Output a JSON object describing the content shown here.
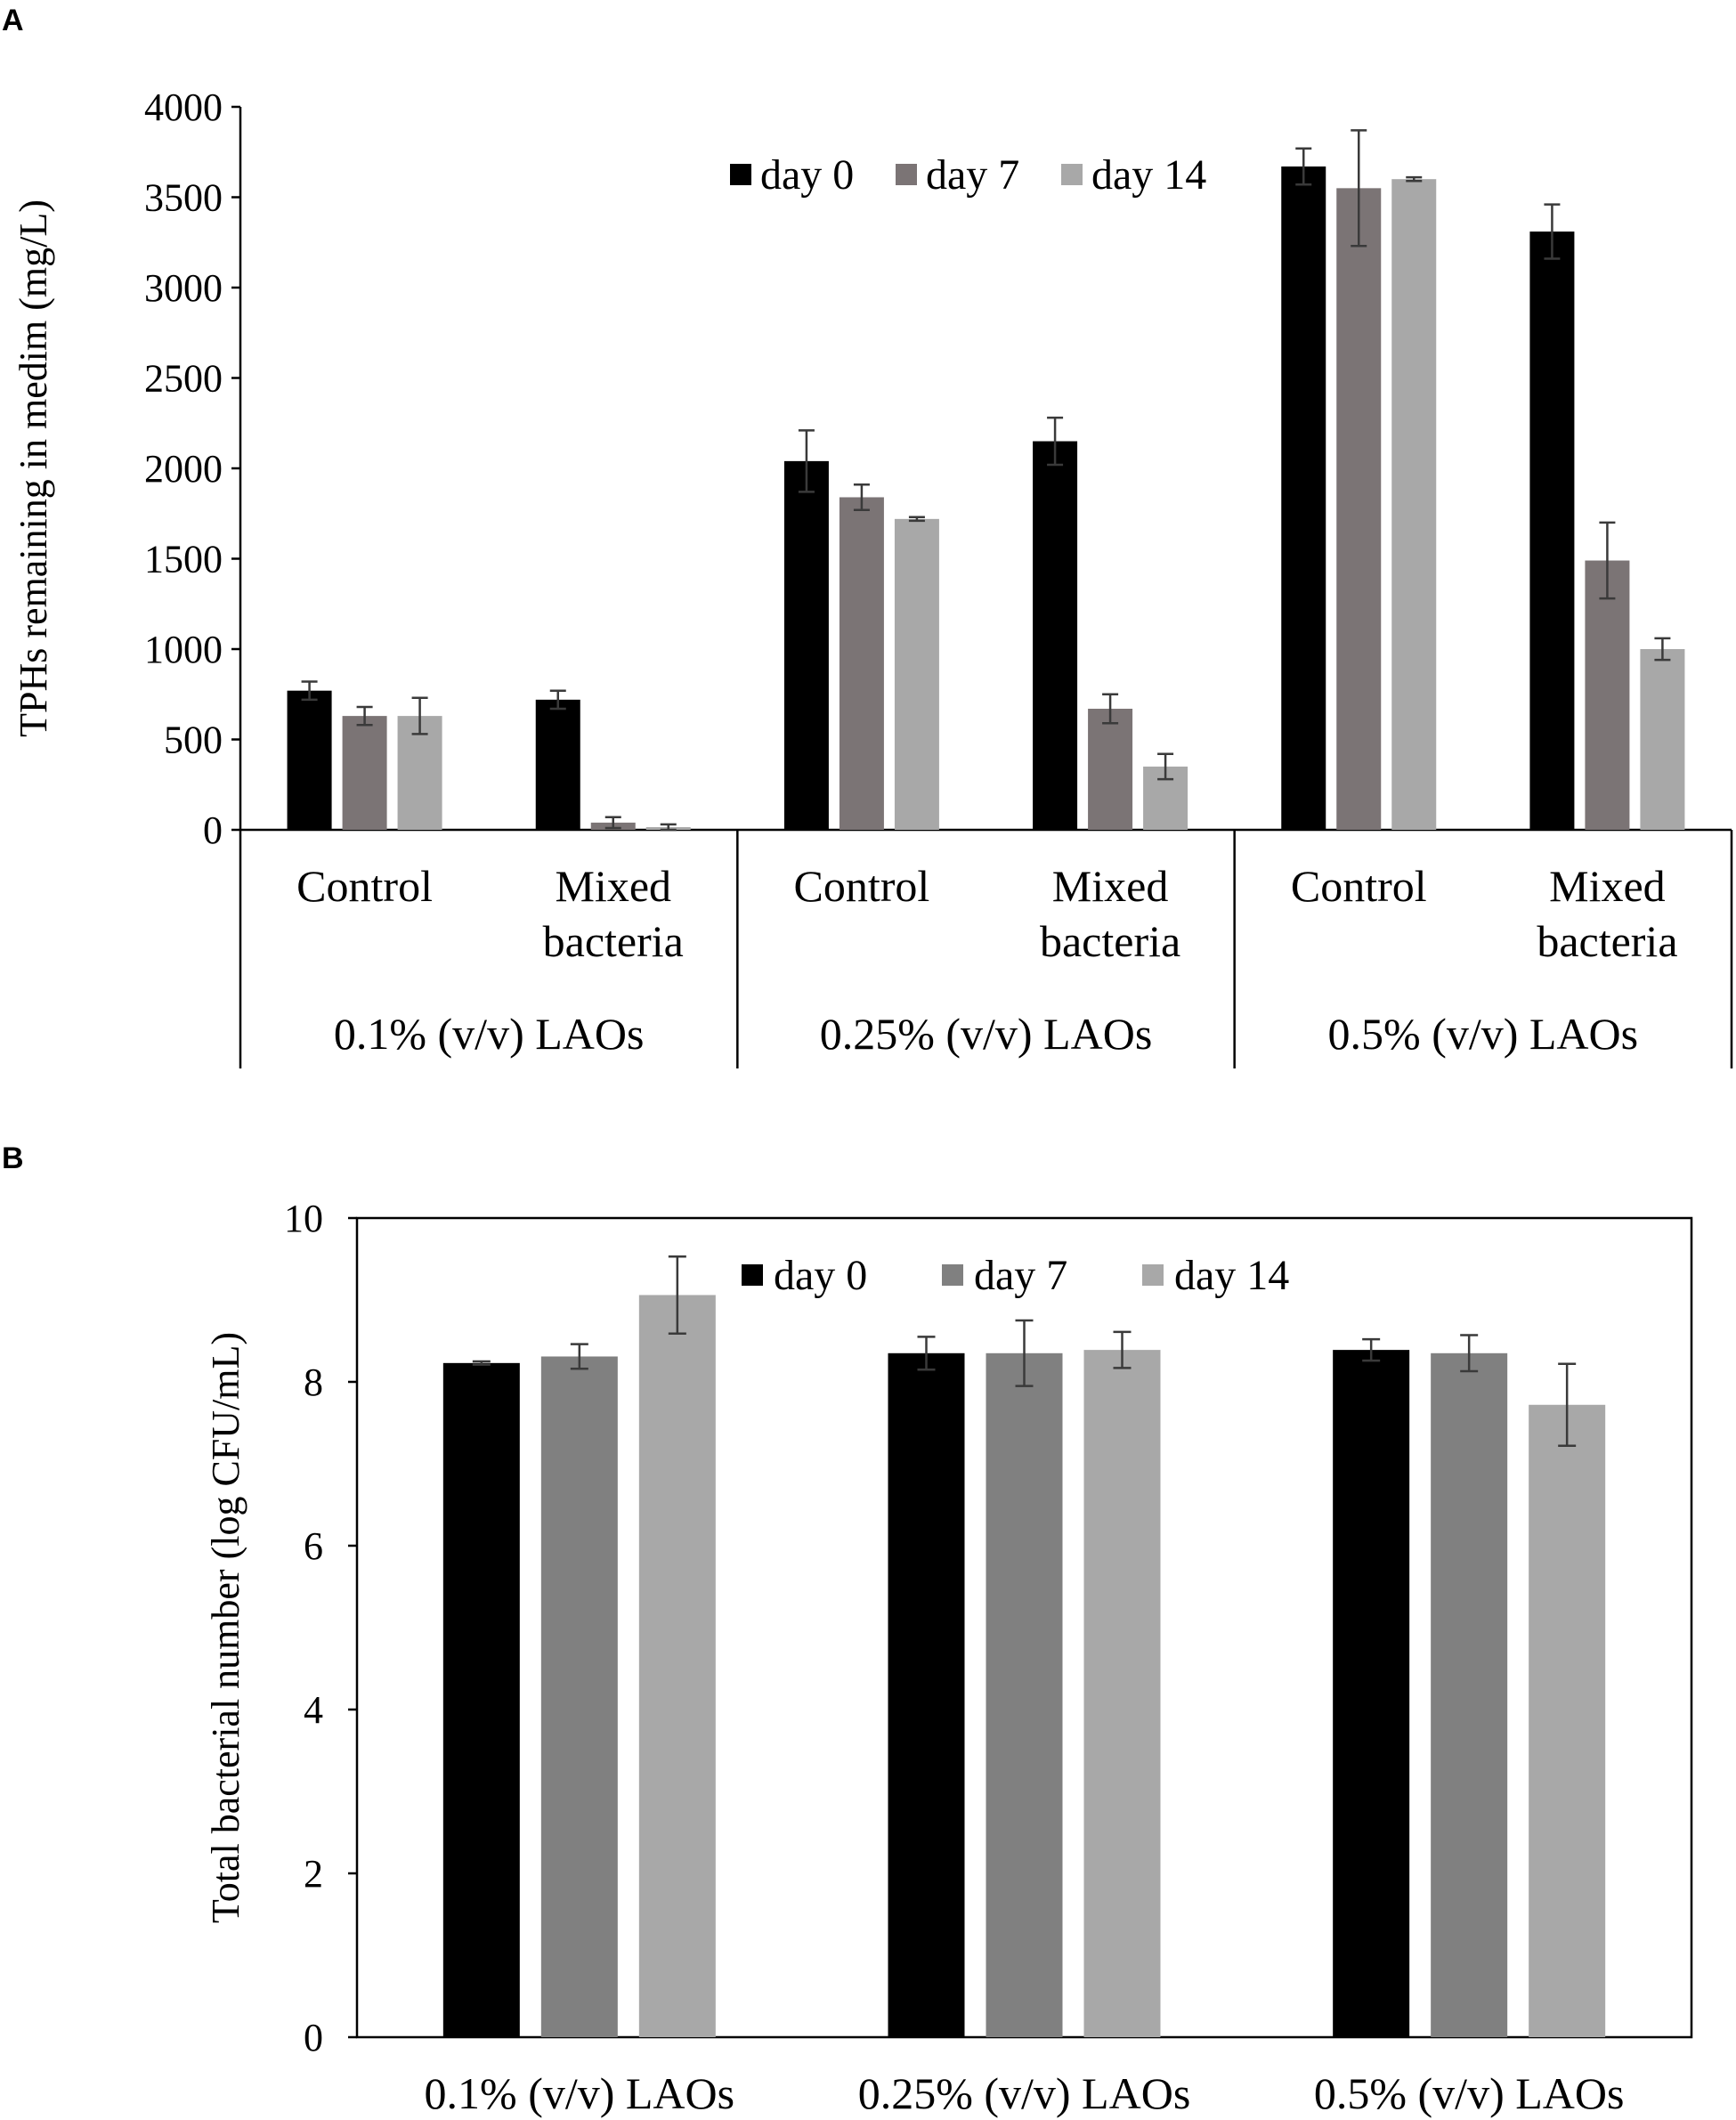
{
  "chart_data": [
    {
      "panel": "A",
      "type": "bar",
      "ylabel": "TPHs remaining in medim (mg/L)",
      "ylim": [
        0,
        4000
      ],
      "yticks": [
        0,
        500,
        1000,
        1500,
        2000,
        2500,
        3000,
        3500,
        4000
      ],
      "groups": [
        "0.1% (v/v) LAOs",
        "0.25% (v/v) LAOs",
        "0.5% (v/v) LAOs"
      ],
      "subcategories": [
        [
          "Control"
        ],
        [
          "Mixed",
          "bacteria"
        ],
        [
          "Control"
        ],
        [
          "Mixed",
          "bacteria"
        ],
        [
          "Control"
        ],
        [
          "Mixed",
          "bacteria"
        ]
      ],
      "series": [
        {
          "name": "day 0",
          "color": "#000000",
          "values": [
            770,
            720,
            2040,
            2150,
            3670,
            3310
          ],
          "errors": [
            50,
            50,
            170,
            130,
            100,
            150
          ]
        },
        {
          "name": "day 7",
          "color": "#7b7475",
          "values": [
            630,
            40,
            1840,
            670,
            3550,
            1490
          ],
          "errors": [
            50,
            30,
            70,
            80,
            320,
            210
          ]
        },
        {
          "name": "day 14",
          "color": "#a8a8a8",
          "values": [
            630,
            15,
            1720,
            350,
            3600,
            1000
          ],
          "errors": [
            100,
            15,
            10,
            70,
            10,
            60
          ]
        }
      ]
    },
    {
      "panel": "B",
      "type": "bar",
      "ylabel": "Total bacterial number (log CFU/mL)",
      "ylim": [
        0,
        10
      ],
      "yticks": [
        0,
        2,
        4,
        6,
        8,
        10
      ],
      "categories": [
        "0.1% (v/v) LAOs",
        "0.25% (v/v) LAOs",
        "0.5% (v/v) LAOs"
      ],
      "series": [
        {
          "name": "day 0",
          "color": "#000000",
          "values": [
            8.23,
            8.35,
            8.39
          ],
          "errors": [
            0.02,
            0.2,
            0.13
          ]
        },
        {
          "name": "day 7",
          "color": "#808080",
          "values": [
            8.31,
            8.35,
            8.35
          ],
          "errors": [
            0.15,
            0.4,
            0.22
          ]
        },
        {
          "name": "day 14",
          "color": "#a8a8a8",
          "values": [
            9.06,
            8.39,
            7.72
          ],
          "errors": [
            0.47,
            0.22,
            0.5
          ]
        }
      ]
    }
  ]
}
